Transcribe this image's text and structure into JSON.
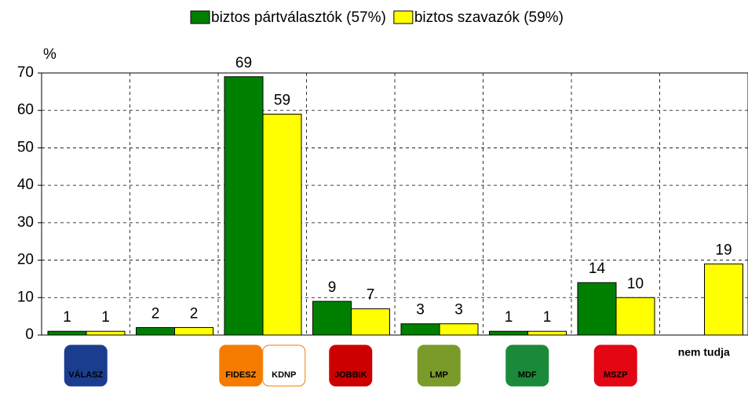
{
  "chart_data": {
    "type": "bar",
    "y_axis_label": "%",
    "categories": [
      null,
      null,
      null,
      null,
      null,
      null,
      null,
      "nem tudja"
    ],
    "logo_labels": {
      "0": [
        "VÁLASZ"
      ],
      "2": [
        "FIDESZ",
        "KDNP"
      ],
      "3": [
        "JOBBIK"
      ],
      "4": [
        "LMP"
      ],
      "5": [
        "MDF"
      ],
      "6": [
        "MSZP"
      ]
    },
    "series": [
      {
        "name": "biztos pártválasztók (57%)",
        "color": "#008000",
        "values": [
          1,
          2,
          69,
          9,
          3,
          1,
          14,
          null
        ]
      },
      {
        "name": "biztos szavazók (59%)",
        "color": "#ffff00",
        "values": [
          1,
          2,
          59,
          7,
          3,
          1,
          10,
          19
        ]
      }
    ],
    "ylim": [
      0,
      70
    ],
    "yticks": [
      0,
      10,
      20,
      30,
      40,
      50,
      60,
      70
    ],
    "grid": true,
    "legend": "top"
  }
}
